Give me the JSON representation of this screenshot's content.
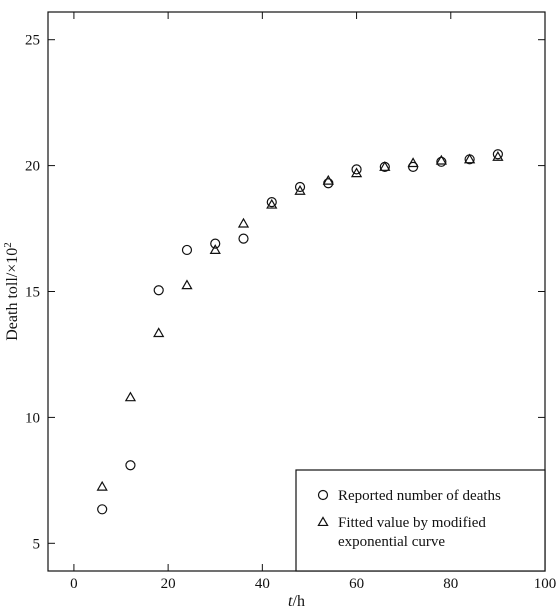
{
  "chart_data": {
    "type": "scatter",
    "xlabel_italic": "t",
    "xlabel_unit": "/h",
    "ylabel_main": "Death toll/×10",
    "ylabel_exp": "2",
    "xlim": [
      -5.5,
      100
    ],
    "ylim": [
      3.9,
      26.1
    ],
    "xticks": [
      0,
      20,
      40,
      60,
      80,
      100
    ],
    "yticks": [
      5,
      10,
      15,
      20,
      25
    ],
    "grid": false,
    "legend_position": "bottom-right",
    "series": [
      {
        "name": "Reported number of deaths",
        "marker": "circle",
        "x": [
          6,
          12,
          18,
          24,
          30,
          36,
          42,
          48,
          54,
          60,
          66,
          72,
          78,
          84,
          90
        ],
        "y": [
          6.35,
          8.1,
          15.05,
          16.65,
          16.9,
          17.1,
          18.55,
          19.15,
          19.3,
          19.85,
          19.95,
          19.95,
          20.15,
          20.25,
          20.45
        ]
      },
      {
        "name": "Fitted value by modified exponential curve",
        "name_lines": [
          "Fitted value by modified",
          "exponential curve"
        ],
        "marker": "triangle",
        "x": [
          6,
          12,
          18,
          24,
          30,
          36,
          42,
          48,
          54,
          60,
          66,
          72,
          78,
          84,
          90
        ],
        "y": [
          7.25,
          10.8,
          13.35,
          15.25,
          16.65,
          17.7,
          18.45,
          19.0,
          19.4,
          19.7,
          19.95,
          20.1,
          20.2,
          20.25,
          20.35
        ]
      }
    ]
  }
}
